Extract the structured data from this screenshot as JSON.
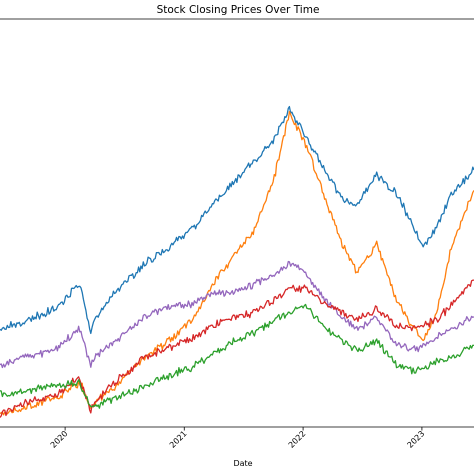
{
  "chart_data": {
    "type": "line",
    "title": "Stock Closing Prices Over Time",
    "xlabel": "Date",
    "ylabel": "",
    "x_axis": "date",
    "xlim": [
      "2019-06-15",
      "2023-06-10"
    ],
    "ylim": [
      0,
      100
    ],
    "x_ticks": [
      "2020-01-01",
      "2021-01-01",
      "2022-01-01",
      "2023-01-01"
    ],
    "x_tick_labels": [
      "2020",
      "2021",
      "2022",
      "2023"
    ],
    "y_ticks_visible": false,
    "grid": false,
    "legend": "none",
    "series": [
      {
        "color": "#1f77b4",
        "x": [
          "2019-06-15",
          "2019-09-01",
          "2019-12-01",
          "2020-02-15",
          "2020-03-20",
          "2020-04-01",
          "2020-06-01",
          "2020-09-01",
          "2020-12-01",
          "2021-02-01",
          "2021-04-01",
          "2021-06-01",
          "2021-08-01",
          "2021-10-01",
          "2021-11-20",
          "2022-01-05",
          "2022-03-01",
          "2022-05-01",
          "2022-06-15",
          "2022-08-15",
          "2022-10-15",
          "2022-12-01",
          "2023-01-05",
          "2023-02-15",
          "2023-04-01",
          "2023-06-10"
        ],
        "y": [
          24,
          26,
          29,
          35,
          23,
          26,
          33,
          40,
          45,
          49,
          55,
          60,
          65,
          70,
          78,
          72,
          64,
          56,
          54,
          62,
          57,
          50,
          44,
          49,
          57,
          63
        ]
      },
      {
        "color": "#ff7f0e",
        "x": [
          "2019-06-15",
          "2019-09-01",
          "2019-12-01",
          "2020-02-15",
          "2020-03-20",
          "2020-04-01",
          "2020-06-01",
          "2020-09-01",
          "2020-12-01",
          "2021-02-01",
          "2021-04-01",
          "2021-06-01",
          "2021-08-01",
          "2021-10-01",
          "2021-11-20",
          "2022-01-05",
          "2022-03-01",
          "2022-05-01",
          "2022-06-15",
          "2022-08-15",
          "2022-10-15",
          "2022-12-01",
          "2023-01-05",
          "2023-02-15",
          "2023-04-01",
          "2023-06-10"
        ],
        "y": [
          3,
          5,
          7,
          11,
          5,
          6,
          10,
          17,
          22,
          27,
          35,
          42,
          48,
          60,
          77,
          70,
          58,
          45,
          38,
          45,
          31,
          25,
          21,
          28,
          44,
          58
        ]
      },
      {
        "color": "#9467bd",
        "x": [
          "2019-06-15",
          "2019-09-01",
          "2019-12-01",
          "2020-02-15",
          "2020-03-20",
          "2020-04-01",
          "2020-06-01",
          "2020-09-01",
          "2020-12-01",
          "2021-02-01",
          "2021-04-01",
          "2021-06-01",
          "2021-08-01",
          "2021-10-01",
          "2021-11-20",
          "2022-01-05",
          "2022-03-01",
          "2022-05-01",
          "2022-06-15",
          "2022-08-15",
          "2022-10-15",
          "2022-12-01",
          "2023-01-05",
          "2023-02-15",
          "2023-04-01",
          "2023-06-10"
        ],
        "y": [
          15,
          17,
          19,
          24,
          15,
          17,
          21,
          27,
          30,
          30,
          33,
          33,
          35,
          37,
          40,
          38,
          32,
          27,
          24,
          27,
          20,
          19,
          20,
          22,
          24,
          27
        ]
      },
      {
        "color": "#d62728",
        "x": [
          "2019-06-15",
          "2019-09-01",
          "2019-12-01",
          "2020-02-15",
          "2020-03-20",
          "2020-04-01",
          "2020-06-01",
          "2020-09-01",
          "2020-12-01",
          "2021-02-01",
          "2021-04-01",
          "2021-06-01",
          "2021-08-01",
          "2021-10-01",
          "2021-11-20",
          "2022-01-05",
          "2022-03-01",
          "2022-05-01",
          "2022-06-15",
          "2022-08-15",
          "2022-10-15",
          "2022-12-01",
          "2023-01-05",
          "2023-02-15",
          "2023-04-01",
          "2023-06-10"
        ],
        "y": [
          3,
          6,
          8,
          12,
          4,
          6,
          11,
          17,
          20,
          22,
          25,
          27,
          28,
          31,
          34,
          34,
          31,
          28,
          26,
          29,
          25,
          24,
          25,
          26,
          30,
          36
        ]
      },
      {
        "color": "#2ca02c",
        "x": [
          "2019-06-15",
          "2019-09-01",
          "2019-12-01",
          "2020-02-15",
          "2020-03-20",
          "2020-04-01",
          "2020-06-01",
          "2020-09-01",
          "2020-12-01",
          "2021-02-01",
          "2021-04-01",
          "2021-06-01",
          "2021-08-01",
          "2021-10-01",
          "2021-11-20",
          "2022-01-05",
          "2022-03-01",
          "2022-05-01",
          "2022-06-15",
          "2022-08-15",
          "2022-10-15",
          "2022-12-01",
          "2023-01-05",
          "2023-02-15",
          "2023-04-01",
          "2023-06-10"
        ],
        "y": [
          8,
          9,
          10,
          11,
          5,
          5,
          7,
          10,
          13,
          15,
          18,
          21,
          23,
          26,
          28,
          30,
          25,
          21,
          19,
          21,
          15,
          14,
          14,
          16,
          17,
          20
        ]
      }
    ]
  }
}
